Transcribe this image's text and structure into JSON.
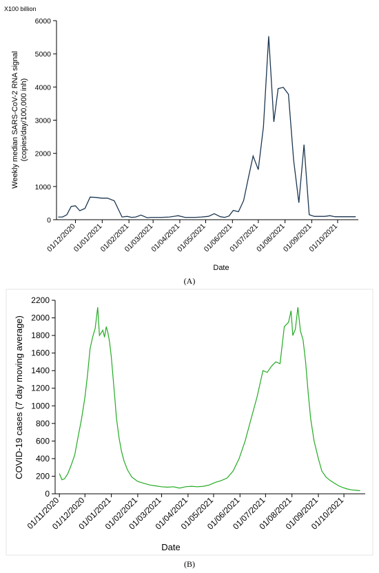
{
  "panel_labels": {
    "a": "(A)",
    "b": "(B)"
  },
  "chart_data": [
    {
      "type": "line",
      "title": "",
      "scale_note": "X100 billion",
      "xlabel": "Date",
      "ylabel_lines": [
        "Weekly median SARS-CoV-2 RNA signal",
        "(copies/day/100,000 inh)"
      ],
      "ylim": [
        0,
        6000
      ],
      "yticks": [
        "0",
        "1000",
        "2000",
        "3000",
        "4000",
        "5000",
        "6000"
      ],
      "xlim": [
        "2020-11-09",
        "2021-10-25"
      ],
      "xticks": [
        {
          "date": "2020-12-01",
          "label": "01/12/2020"
        },
        {
          "date": "2021-01-01",
          "label": "01/01/2021"
        },
        {
          "date": "2021-02-01",
          "label": "01/02/2021"
        },
        {
          "date": "2021-03-01",
          "label": "01/03/2021"
        },
        {
          "date": "2021-04-01",
          "label": "01/04/2021"
        },
        {
          "date": "2021-05-01",
          "label": "01/05/2021"
        },
        {
          "date": "2021-06-01",
          "label": "01/06/2021"
        },
        {
          "date": "2021-07-01",
          "label": "01/07/2021"
        },
        {
          "date": "2021-08-01",
          "label": "01/08/2021"
        },
        {
          "date": "2021-09-01",
          "label": "01/09/2021"
        },
        {
          "date": "2021-10-01",
          "label": "01/10/2021"
        }
      ],
      "line_color": "#1a3550",
      "grid": false,
      "series": [
        {
          "x": [
            "2020-11-11",
            "2020-11-16",
            "2020-11-21",
            "2020-11-26",
            "2020-12-01",
            "2020-12-06",
            "2020-12-12",
            "2020-12-18",
            "2020-12-25",
            "2020-12-31",
            "2021-01-07",
            "2021-01-15",
            "2021-01-24",
            "2021-01-30",
            "2021-02-04",
            "2021-02-09",
            "2021-02-15",
            "2021-02-22",
            "2021-02-27",
            "2021-03-04",
            "2021-03-11",
            "2021-03-20",
            "2021-03-30",
            "2021-04-07",
            "2021-04-13",
            "2021-04-19",
            "2021-04-26",
            "2021-05-04",
            "2021-05-11",
            "2021-05-18",
            "2021-05-23",
            "2021-05-28",
            "2021-06-02",
            "2021-06-08",
            "2021-06-14",
            "2021-06-19",
            "2021-06-25",
            "2021-07-01",
            "2021-07-07",
            "2021-07-13",
            "2021-07-19",
            "2021-07-24",
            "2021-07-30",
            "2021-08-05",
            "2021-08-11",
            "2021-08-17",
            "2021-08-23",
            "2021-08-29",
            "2021-09-04",
            "2021-09-10",
            "2021-09-16",
            "2021-09-22",
            "2021-09-28",
            "2021-10-04",
            "2021-10-10",
            "2021-10-16",
            "2021-10-22"
          ],
          "y": [
            80,
            80,
            150,
            400,
            420,
            270,
            340,
            680,
            670,
            650,
            650,
            570,
            80,
            100,
            70,
            80,
            140,
            60,
            70,
            70,
            70,
            80,
            120,
            70,
            70,
            70,
            80,
            100,
            180,
            90,
            70,
            110,
            280,
            240,
            580,
            1200,
            1920,
            1510,
            2800,
            5530,
            2950,
            3950,
            3990,
            3780,
            1800,
            510,
            2260,
            150,
            100,
            100,
            100,
            120,
            90,
            90,
            90,
            90,
            90
          ]
        }
      ]
    },
    {
      "type": "line",
      "title": "",
      "xlabel": "Date",
      "ylabel": "COVID-19 cases (7 day moving average)",
      "ylim": [
        0,
        2200
      ],
      "yticks": [
        "0",
        "200",
        "400",
        "600",
        "800",
        "1000",
        "1200",
        "1400",
        "1600",
        "1800",
        "2000",
        "2200"
      ],
      "xlim": [
        "2020-10-27",
        "2021-10-26"
      ],
      "xticks": [
        {
          "date": "2020-11-01",
          "label": "01/11/2020"
        },
        {
          "date": "2020-12-01",
          "label": "01/12/2020"
        },
        {
          "date": "2021-01-01",
          "label": "01/01/2021"
        },
        {
          "date": "2021-02-01",
          "label": "01/02/2021"
        },
        {
          "date": "2021-03-01",
          "label": "01/03/2021"
        },
        {
          "date": "2021-04-01",
          "label": "01/04/2021"
        },
        {
          "date": "2021-05-01",
          "label": "01/05/2021"
        },
        {
          "date": "2021-06-01",
          "label": "01/06/2021"
        },
        {
          "date": "2021-07-01",
          "label": "01/07/2021"
        },
        {
          "date": "2021-08-01",
          "label": "01/08/2021"
        },
        {
          "date": "2021-09-01",
          "label": "01/09/2021"
        },
        {
          "date": "2021-10-01",
          "label": "01/10/2021"
        }
      ],
      "line_color": "#22aa22",
      "grid": false,
      "series": [
        {
          "x": [
            "2020-11-01",
            "2020-11-04",
            "2020-11-07",
            "2020-11-11",
            "2020-11-15",
            "2020-11-19",
            "2020-11-23",
            "2020-11-27",
            "2020-12-01",
            "2020-12-04",
            "2020-12-07",
            "2020-12-10",
            "2020-12-13",
            "2020-12-16",
            "2020-12-18",
            "2020-12-20",
            "2020-12-22",
            "2020-12-24",
            "2020-12-26",
            "2020-12-28",
            "2020-12-30",
            "2021-01-01",
            "2021-01-03",
            "2021-01-05",
            "2021-01-07",
            "2021-01-10",
            "2021-01-13",
            "2021-01-16",
            "2021-01-20",
            "2021-01-25",
            "2021-02-01",
            "2021-02-08",
            "2021-02-15",
            "2021-02-22",
            "2021-03-01",
            "2021-03-08",
            "2021-03-15",
            "2021-03-22",
            "2021-03-29",
            "2021-04-05",
            "2021-04-12",
            "2021-04-19",
            "2021-04-26",
            "2021-05-03",
            "2021-05-10",
            "2021-05-17",
            "2021-05-24",
            "2021-05-31",
            "2021-06-07",
            "2021-06-14",
            "2021-06-21",
            "2021-06-28",
            "2021-07-03",
            "2021-07-08",
            "2021-07-13",
            "2021-07-18",
            "2021-07-23",
            "2021-07-28",
            "2021-07-31",
            "2021-08-02",
            "2021-08-05",
            "2021-08-08",
            "2021-08-11",
            "2021-08-14",
            "2021-08-17",
            "2021-08-20",
            "2021-08-23",
            "2021-08-27",
            "2021-09-01",
            "2021-09-05",
            "2021-09-10",
            "2021-09-15",
            "2021-09-20",
            "2021-09-25",
            "2021-09-30",
            "2021-10-05",
            "2021-10-10",
            "2021-10-15",
            "2021-10-20"
          ],
          "y": [
            230,
            160,
            170,
            230,
            330,
            440,
            650,
            850,
            1100,
            1350,
            1650,
            1780,
            1880,
            2120,
            1800,
            1830,
            1860,
            1780,
            1900,
            1830,
            1720,
            1550,
            1320,
            1100,
            860,
            640,
            480,
            370,
            270,
            190,
            140,
            120,
            100,
            90,
            80,
            75,
            80,
            65,
            80,
            85,
            80,
            85,
            100,
            130,
            150,
            180,
            260,
            400,
            600,
            850,
            1100,
            1400,
            1380,
            1450,
            1500,
            1480,
            1900,
            1950,
            2080,
            1800,
            1870,
            2120,
            1850,
            1750,
            1500,
            1150,
            850,
            600,
            400,
            260,
            190,
            150,
            120,
            90,
            70,
            55,
            45,
            40,
            35
          ]
        }
      ]
    }
  ]
}
